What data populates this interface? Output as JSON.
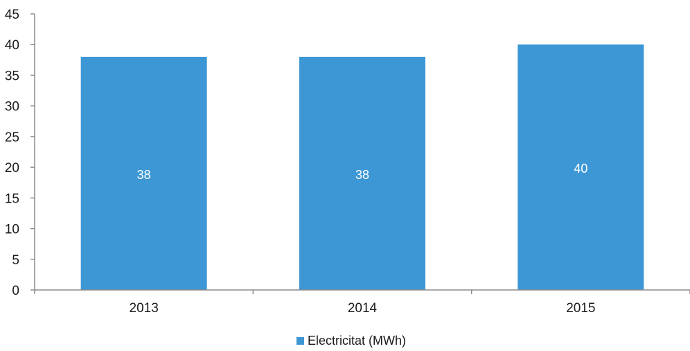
{
  "chart_data": {
    "type": "bar",
    "categories": [
      "2013",
      "2014",
      "2015"
    ],
    "series": [
      {
        "name": "Electricitat (MWh)",
        "values": [
          38,
          38,
          40
        ]
      }
    ],
    "data_labels": [
      "38",
      "38",
      "40"
    ],
    "ylim": [
      0,
      45
    ],
    "y_ticks": [
      0,
      5,
      10,
      15,
      20,
      25,
      30,
      35,
      40,
      45
    ],
    "y_tick_labels": [
      "0",
      "5",
      "10",
      "15",
      "20",
      "25",
      "30",
      "35",
      "40",
      "45"
    ],
    "grid": false,
    "legend_position": "bottom",
    "colors": {
      "bar": "#3d97d5",
      "axis": "#8c8c8c"
    }
  }
}
